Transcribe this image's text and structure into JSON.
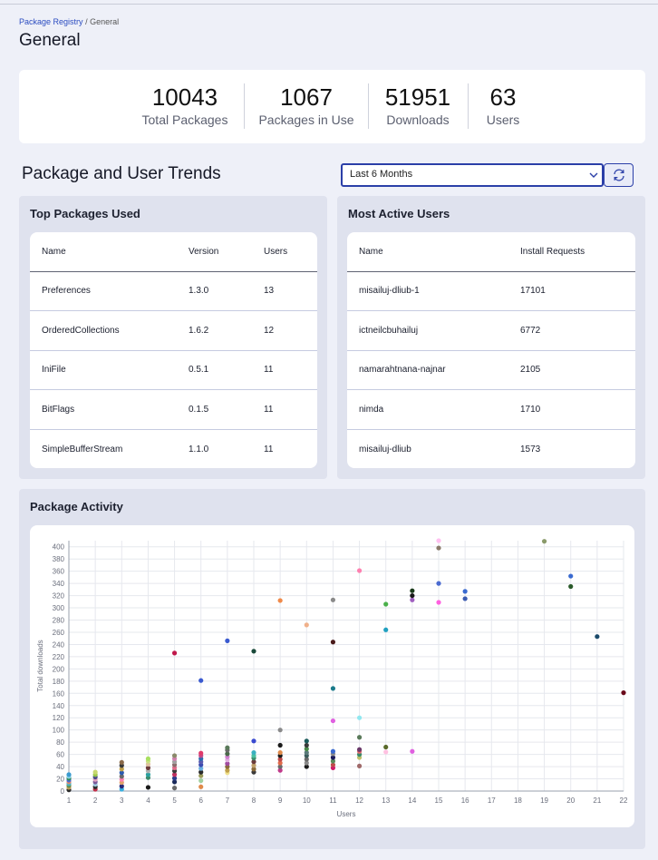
{
  "breadcrumb": {
    "root": "Package Registry",
    "sep": "/",
    "current": "General"
  },
  "page": {
    "title": "General"
  },
  "stats": [
    {
      "value": "10043",
      "label": "Total Packages"
    },
    {
      "value": "1067",
      "label": "Packages in Use"
    },
    {
      "value": "51951",
      "label": "Downloads"
    },
    {
      "value": "63",
      "label": "Users"
    }
  ],
  "trends": {
    "title": "Package and User Trends",
    "range_selected": "Last 6 Months"
  },
  "top_packages": {
    "title": "Top Packages Used",
    "headers": [
      "Name",
      "Version",
      "Users"
    ],
    "rows": [
      [
        "Preferences",
        "1.3.0",
        "13"
      ],
      [
        "OrderedCollections",
        "1.6.2",
        "12"
      ],
      [
        "IniFile",
        "0.5.1",
        "11"
      ],
      [
        "BitFlags",
        "0.1.5",
        "11"
      ],
      [
        "SimpleBufferStream",
        "1.1.0",
        "11"
      ]
    ]
  },
  "active_users": {
    "title": "Most Active Users",
    "headers": [
      "Name",
      "Install Requests"
    ],
    "rows": [
      [
        "misailuj-dliub-1",
        "17101"
      ],
      [
        "ictneilcbuhailuj",
        "6772"
      ],
      [
        "namarahtnana-najnar",
        "2105"
      ],
      [
        "nimda",
        "1710"
      ],
      [
        "misailuj-dliub",
        "1573"
      ]
    ]
  },
  "activity": {
    "title": "Package Activity"
  },
  "chart_data": {
    "type": "scatter",
    "title": "",
    "xlabel": "Users",
    "ylabel": "Total downloads",
    "xlim": [
      1,
      22
    ],
    "ylim": [
      0,
      410
    ],
    "xticks": [
      1,
      2,
      3,
      4,
      5,
      6,
      7,
      8,
      9,
      10,
      11,
      12,
      13,
      14,
      15,
      16,
      17,
      18,
      19,
      20,
      21,
      22
    ],
    "yticks": [
      0,
      20,
      40,
      60,
      80,
      100,
      120,
      140,
      160,
      180,
      200,
      220,
      240,
      260,
      280,
      300,
      320,
      340,
      360,
      380,
      400
    ],
    "grid": true,
    "points": [
      {
        "x": 1,
        "y": 2,
        "c": "#2a2a2a"
      },
      {
        "x": 1,
        "y": 6,
        "c": "#c0a15a"
      },
      {
        "x": 1,
        "y": 9,
        "c": "#6a8a4a"
      },
      {
        "x": 1,
        "y": 12,
        "c": "#3bb5c8"
      },
      {
        "x": 1,
        "y": 15,
        "c": "#e08a6a"
      },
      {
        "x": 1,
        "y": 18,
        "c": "#4a6ad8"
      },
      {
        "x": 1,
        "y": 21,
        "c": "#2e8a5a"
      },
      {
        "x": 1,
        "y": 24,
        "c": "#8ad0e8"
      },
      {
        "x": 1,
        "y": 27,
        "c": "#3a9ad0"
      },
      {
        "x": 2,
        "y": 3,
        "c": "#c0304a"
      },
      {
        "x": 2,
        "y": 7,
        "c": "#2a2a2a"
      },
      {
        "x": 2,
        "y": 11,
        "c": "#a0c8e0"
      },
      {
        "x": 2,
        "y": 15,
        "c": "#7a5a9a"
      },
      {
        "x": 2,
        "y": 19,
        "c": "#e0a0c0"
      },
      {
        "x": 2,
        "y": 23,
        "c": "#4a4a8a"
      },
      {
        "x": 2,
        "y": 27,
        "c": "#9ac84a"
      },
      {
        "x": 2,
        "y": 31,
        "c": "#c8d870"
      },
      {
        "x": 3,
        "y": 3,
        "c": "#3ab0e0"
      },
      {
        "x": 3,
        "y": 8,
        "c": "#2a2a7a"
      },
      {
        "x": 3,
        "y": 14,
        "c": "#e0a06a"
      },
      {
        "x": 3,
        "y": 19,
        "c": "#ff80b0"
      },
      {
        "x": 3,
        "y": 24,
        "c": "#6a6a6a"
      },
      {
        "x": 3,
        "y": 30,
        "c": "#2a5ab0"
      },
      {
        "x": 3,
        "y": 36,
        "c": "#c0a04a"
      },
      {
        "x": 3,
        "y": 42,
        "c": "#3a3a3a"
      },
      {
        "x": 3,
        "y": 47,
        "c": "#8a6a4a"
      },
      {
        "x": 4,
        "y": 6,
        "c": "#1a1a1a"
      },
      {
        "x": 4,
        "y": 22,
        "c": "#3a8a6a"
      },
      {
        "x": 4,
        "y": 27,
        "c": "#2aa0a0"
      },
      {
        "x": 4,
        "y": 33,
        "c": "#b0b0b0"
      },
      {
        "x": 4,
        "y": 38,
        "c": "#6a3a3a"
      },
      {
        "x": 4,
        "y": 44,
        "c": "#e0c0a0"
      },
      {
        "x": 4,
        "y": 49,
        "c": "#c8e080"
      },
      {
        "x": 4,
        "y": 53,
        "c": "#a8e060"
      },
      {
        "x": 5,
        "y": 5,
        "c": "#6a6a6a"
      },
      {
        "x": 5,
        "y": 15,
        "c": "#1a2a5a"
      },
      {
        "x": 5,
        "y": 21,
        "c": "#2a3a8a"
      },
      {
        "x": 5,
        "y": 27,
        "c": "#c03060"
      },
      {
        "x": 5,
        "y": 33,
        "c": "#3a3a3a"
      },
      {
        "x": 5,
        "y": 38,
        "c": "#e06a8a"
      },
      {
        "x": 5,
        "y": 43,
        "c": "#8a6a6a"
      },
      {
        "x": 5,
        "y": 48,
        "c": "#a0a0a0"
      },
      {
        "x": 5,
        "y": 53,
        "c": "#d080b0"
      },
      {
        "x": 5,
        "y": 58,
        "c": "#8a8a6a"
      },
      {
        "x": 5,
        "y": 226,
        "c": "#c0184a"
      },
      {
        "x": 6,
        "y": 7,
        "c": "#e08a4a"
      },
      {
        "x": 6,
        "y": 17,
        "c": "#a0d0a0"
      },
      {
        "x": 6,
        "y": 25,
        "c": "#9a9a5a"
      },
      {
        "x": 6,
        "y": 31,
        "c": "#2a2a2a"
      },
      {
        "x": 6,
        "y": 37,
        "c": "#6ab0e0"
      },
      {
        "x": 6,
        "y": 43,
        "c": "#3a4ab0"
      },
      {
        "x": 6,
        "y": 48,
        "c": "#5a5ab0"
      },
      {
        "x": 6,
        "y": 53,
        "c": "#2a6ab0"
      },
      {
        "x": 6,
        "y": 58,
        "c": "#c04a8a"
      },
      {
        "x": 6,
        "y": 62,
        "c": "#e03a6a"
      },
      {
        "x": 6,
        "y": 181,
        "c": "#3a5ad0"
      },
      {
        "x": 7,
        "y": 30,
        "c": "#f0e08a"
      },
      {
        "x": 7,
        "y": 34,
        "c": "#c0a04a"
      },
      {
        "x": 7,
        "y": 40,
        "c": "#8a6a3a"
      },
      {
        "x": 7,
        "y": 45,
        "c": "#a04aa0"
      },
      {
        "x": 7,
        "y": 51,
        "c": "#e0b0e0"
      },
      {
        "x": 7,
        "y": 56,
        "c": "#d080d0"
      },
      {
        "x": 7,
        "y": 61,
        "c": "#4a6a4a"
      },
      {
        "x": 7,
        "y": 67,
        "c": "#6a6a6a"
      },
      {
        "x": 7,
        "y": 71,
        "c": "#5a7a5a"
      },
      {
        "x": 7,
        "y": 246,
        "c": "#3a5ad0"
      },
      {
        "x": 8,
        "y": 31,
        "c": "#3a3a3a"
      },
      {
        "x": 8,
        "y": 36,
        "c": "#8a6a3a"
      },
      {
        "x": 8,
        "y": 42,
        "c": "#c0a06a"
      },
      {
        "x": 8,
        "y": 48,
        "c": "#6a3a3a"
      },
      {
        "x": 8,
        "y": 54,
        "c": "#3a8a6a"
      },
      {
        "x": 8,
        "y": 58,
        "c": "#4ac0a0"
      },
      {
        "x": 8,
        "y": 63,
        "c": "#3ab0c0"
      },
      {
        "x": 8,
        "y": 82,
        "c": "#3a4ad0"
      },
      {
        "x": 8,
        "y": 229,
        "c": "#1a4a3a"
      },
      {
        "x": 9,
        "y": 34,
        "c": "#c03a8a"
      },
      {
        "x": 9,
        "y": 40,
        "c": "#6a6a6a"
      },
      {
        "x": 9,
        "y": 46,
        "c": "#e06a4a"
      },
      {
        "x": 9,
        "y": 52,
        "c": "#c04a4a"
      },
      {
        "x": 9,
        "y": 58,
        "c": "#1a1a1a"
      },
      {
        "x": 9,
        "y": 63,
        "c": "#e08a4a"
      },
      {
        "x": 9,
        "y": 75,
        "c": "#1a1a1a"
      },
      {
        "x": 9,
        "y": 100,
        "c": "#8a8a8a"
      },
      {
        "x": 9,
        "y": 312,
        "c": "#f08a4a"
      },
      {
        "x": 10,
        "y": 40,
        "c": "#1a1a1a"
      },
      {
        "x": 10,
        "y": 46,
        "c": "#8a8a8a"
      },
      {
        "x": 10,
        "y": 52,
        "c": "#6a6a6a"
      },
      {
        "x": 10,
        "y": 58,
        "c": "#3a5a5a"
      },
      {
        "x": 10,
        "y": 63,
        "c": "#5a7a7a"
      },
      {
        "x": 10,
        "y": 69,
        "c": "#4a8a4a"
      },
      {
        "x": 10,
        "y": 75,
        "c": "#3a3a3a"
      },
      {
        "x": 10,
        "y": 82,
        "c": "#1a5a5a"
      },
      {
        "x": 10,
        "y": 272,
        "c": "#f0b08a"
      },
      {
        "x": 11,
        "y": 38,
        "c": "#d01a6a"
      },
      {
        "x": 11,
        "y": 43,
        "c": "#c04a4a"
      },
      {
        "x": 11,
        "y": 49,
        "c": "#5a8a5a"
      },
      {
        "x": 11,
        "y": 55,
        "c": "#1a1a5a"
      },
      {
        "x": 11,
        "y": 61,
        "c": "#8a8a8a"
      },
      {
        "x": 11,
        "y": 65,
        "c": "#3a6ad0"
      },
      {
        "x": 11,
        "y": 115,
        "c": "#e060e0"
      },
      {
        "x": 11,
        "y": 168,
        "c": "#1a7a8a"
      },
      {
        "x": 11,
        "y": 244,
        "c": "#4a1a1a"
      },
      {
        "x": 11,
        "y": 313,
        "c": "#8a8a8a"
      },
      {
        "x": 12,
        "y": 41,
        "c": "#a06a6a"
      },
      {
        "x": 12,
        "y": 55,
        "c": "#c0c06a"
      },
      {
        "x": 12,
        "y": 60,
        "c": "#3a8a6a"
      },
      {
        "x": 12,
        "y": 65,
        "c": "#e06a6a"
      },
      {
        "x": 12,
        "y": 68,
        "c": "#6a3a6a"
      },
      {
        "x": 12,
        "y": 88,
        "c": "#5a7a5a"
      },
      {
        "x": 12,
        "y": 120,
        "c": "#90e8f0"
      },
      {
        "x": 12,
        "y": 361,
        "c": "#ff80b0"
      },
      {
        "x": 13,
        "y": 64,
        "c": "#ffc0e0"
      },
      {
        "x": 13,
        "y": 72,
        "c": "#5a6a2a"
      },
      {
        "x": 13,
        "y": 264,
        "c": "#20a0c0"
      },
      {
        "x": 13,
        "y": 306,
        "c": "#4ab04a"
      },
      {
        "x": 14,
        "y": 65,
        "c": "#e060e0"
      },
      {
        "x": 14,
        "y": 313,
        "c": "#a060c0"
      },
      {
        "x": 14,
        "y": 320,
        "c": "#1a1a1a"
      },
      {
        "x": 14,
        "y": 328,
        "c": "#1a3a1a"
      },
      {
        "x": 15,
        "y": 309,
        "c": "#ff60e0"
      },
      {
        "x": 15,
        "y": 340,
        "c": "#4a6ad0"
      },
      {
        "x": 15,
        "y": 398,
        "c": "#8a7a6a"
      },
      {
        "x": 15,
        "y": 410,
        "c": "#ffc0f0"
      },
      {
        "x": 16,
        "y": 315,
        "c": "#3a5ab0"
      },
      {
        "x": 16,
        "y": 327,
        "c": "#3a6ad0"
      },
      {
        "x": 19,
        "y": 409,
        "c": "#8a9a6a"
      },
      {
        "x": 20,
        "y": 335,
        "c": "#2a5a2a"
      },
      {
        "x": 20,
        "y": 352,
        "c": "#3a6ad0"
      },
      {
        "x": 21,
        "y": 253,
        "c": "#1a4a6a"
      },
      {
        "x": 22,
        "y": 161,
        "c": "#6a0a1a"
      }
    ]
  }
}
